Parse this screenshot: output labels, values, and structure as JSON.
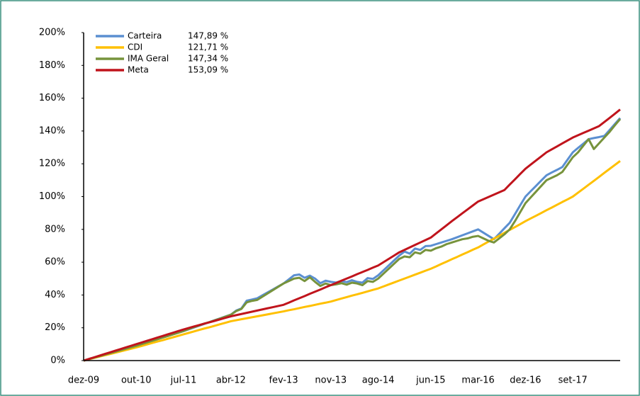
{
  "chart_data": {
    "type": "line",
    "categories": [
      "dez-09",
      null,
      null,
      null,
      null,
      null,
      null,
      null,
      null,
      null,
      "out-10",
      null,
      null,
      null,
      null,
      null,
      null,
      null,
      null,
      "jul-11",
      null,
      null,
      null,
      null,
      null,
      null,
      null,
      null,
      "abr-12",
      null,
      null,
      null,
      null,
      null,
      null,
      null,
      null,
      null,
      "fev-13",
      null,
      null,
      null,
      null,
      null,
      null,
      null,
      null,
      "nov-13",
      null,
      null,
      null,
      null,
      null,
      null,
      null,
      null,
      "ago-14",
      null,
      null,
      null,
      null,
      null,
      null,
      null,
      null,
      null,
      "jun-15",
      null,
      null,
      null,
      null,
      null,
      null,
      null,
      null,
      "mar-16",
      null,
      null,
      null,
      null,
      null,
      null,
      null,
      null,
      "dez-16",
      null,
      null,
      null,
      null,
      null,
      null,
      null,
      null,
      "set-17",
      null,
      null,
      null,
      null,
      null,
      null,
      null,
      null,
      null
    ],
    "series": [
      {
        "name": "Carteira",
        "legend_value": "147,89 %",
        "color": "#5b8fd1",
        "values": [
          0,
          0.9,
          1.8,
          2.7,
          3.6,
          4.5,
          5.4,
          6.3,
          7.2,
          8.1,
          9,
          10,
          11,
          12,
          13,
          14,
          15,
          16,
          17,
          18,
          19.1,
          20.2,
          21.3,
          22.4,
          23.6,
          24.7,
          25.8,
          26.9,
          28,
          30.5,
          31.8,
          36.5,
          37.2,
          38,
          39.8,
          41.6,
          43.4,
          45.2,
          47,
          49.5,
          52,
          52.5,
          50.5,
          51.8,
          50,
          47.2,
          48.7,
          48,
          47.6,
          48.5,
          47.8,
          49,
          48,
          47.5,
          50.3,
          49.8,
          52,
          55,
          58,
          61,
          64,
          66.5,
          65.2,
          68.3,
          67.5,
          69.8,
          70,
          71,
          72,
          73,
          74,
          75.2,
          76.4,
          77.6,
          78.8,
          80,
          78,
          76,
          74,
          77.3,
          80.7,
          84,
          89.3,
          94.7,
          100,
          103.3,
          106.5,
          109.8,
          113,
          114.7,
          116.3,
          118,
          122.5,
          127,
          129.7,
          132.3,
          135,
          135.7,
          136.3,
          137,
          140.6,
          144.3,
          147.9
        ]
      },
      {
        "name": "CDI",
        "legend_value": "121,71 %",
        "color": "#ffc000",
        "values": [
          0,
          0.8,
          1.6,
          2.4,
          3.2,
          4,
          4.8,
          5.6,
          6.4,
          7.2,
          8,
          8.9,
          9.8,
          10.7,
          11.6,
          12.4,
          13.3,
          14.2,
          15.1,
          16,
          16.9,
          17.8,
          18.7,
          19.6,
          20.4,
          21.3,
          22.2,
          23.1,
          24,
          24.6,
          25.2,
          25.8,
          26.4,
          27,
          27.6,
          28.2,
          28.8,
          29.4,
          30,
          30.7,
          31.3,
          32,
          32.7,
          33.3,
          34,
          34.7,
          35.3,
          36,
          36.9,
          37.8,
          38.7,
          39.6,
          40.4,
          41.3,
          42.2,
          43.1,
          44,
          45.2,
          46.4,
          47.6,
          48.8,
          50,
          51.2,
          52.4,
          53.6,
          54.8,
          56,
          57.4,
          58.9,
          60.3,
          61.8,
          63.2,
          64.7,
          66.1,
          67.6,
          69,
          70.8,
          72.6,
          74.3,
          76.1,
          77.9,
          79.7,
          81.4,
          83.2,
          85,
          86.7,
          88.3,
          90,
          91.7,
          93.3,
          95,
          96.7,
          98.3,
          100,
          102.4,
          104.8,
          107.2,
          109.6,
          112,
          114.5,
          116.9,
          119.3,
          121.7
        ]
      },
      {
        "name": "IMA Geral",
        "legend_value": "147,34 %",
        "color": "#77933c",
        "values": [
          0,
          0.9,
          1.8,
          2.7,
          3.6,
          4.5,
          5.4,
          6.3,
          7.2,
          8.1,
          9,
          10,
          11,
          12,
          13,
          14,
          15,
          16,
          17,
          18,
          19.3,
          20.4,
          21.5,
          22.6,
          23.5,
          24.6,
          25.7,
          26.8,
          28,
          30.2,
          31.5,
          35.5,
          36.4,
          37,
          39,
          41,
          43,
          45,
          47,
          48.5,
          50,
          50.5,
          48.5,
          50.8,
          48,
          45.5,
          47,
          46,
          46.5,
          47.2,
          46.3,
          47.5,
          47,
          46,
          48.5,
          48,
          50,
          53,
          56,
          59,
          62,
          63.5,
          63,
          66,
          65.2,
          67.5,
          67,
          68.5,
          69.5,
          71,
          72,
          73,
          74,
          74.5,
          75.5,
          76,
          74.5,
          73,
          72,
          74.5,
          77,
          80,
          85,
          90.5,
          96,
          99.5,
          103,
          106.5,
          110,
          111.5,
          113,
          115,
          119.5,
          124,
          127,
          131,
          135,
          129,
          132.5,
          136,
          139.5,
          143.5,
          147.3
        ]
      },
      {
        "name": "Meta",
        "legend_value": "153,09 %",
        "color": "#c0141c",
        "values": [
          0,
          1,
          2,
          3,
          4,
          5,
          6,
          7,
          8,
          9,
          10,
          11,
          12,
          13,
          14,
          15,
          16,
          17,
          18,
          19,
          19.9,
          20.8,
          21.7,
          22.6,
          23.4,
          24.3,
          25.2,
          26.1,
          27,
          27.7,
          28.4,
          29.1,
          29.8,
          30.5,
          31.2,
          31.9,
          32.6,
          33.3,
          34,
          35.3,
          36.7,
          38,
          39.3,
          40.7,
          42,
          43.3,
          44.7,
          46,
          47.3,
          48.7,
          50,
          51.3,
          52.7,
          54,
          55.3,
          56.7,
          58,
          60,
          62,
          64,
          66,
          67.5,
          69,
          70.5,
          72,
          73.5,
          75,
          77.5,
          80,
          82.5,
          85,
          87.4,
          89.8,
          92.2,
          94.6,
          97,
          98.4,
          99.8,
          101.2,
          102.6,
          104,
          107.3,
          110.5,
          113.8,
          117,
          119.5,
          122,
          124.5,
          127,
          128.8,
          130.6,
          132.4,
          134.2,
          136,
          137.4,
          138.8,
          140.2,
          141.6,
          143,
          145.5,
          148,
          150.5,
          153.1
        ]
      }
    ],
    "ylim": [
      0,
      200
    ],
    "yticks": [
      {
        "value": 0,
        "label": "0%"
      },
      {
        "value": 20,
        "label": "20%"
      },
      {
        "value": 40,
        "label": "40%"
      },
      {
        "value": 60,
        "label": "60%"
      },
      {
        "value": 80,
        "label": "80%"
      },
      {
        "value": 100,
        "label": "100%"
      },
      {
        "value": 120,
        "label": "120%"
      },
      {
        "value": 140,
        "label": "140%"
      },
      {
        "value": 160,
        "label": "160%"
      },
      {
        "value": 180,
        "label": "180%"
      },
      {
        "value": 200,
        "label": "200%"
      }
    ],
    "grid": false,
    "legend": "top-left"
  }
}
